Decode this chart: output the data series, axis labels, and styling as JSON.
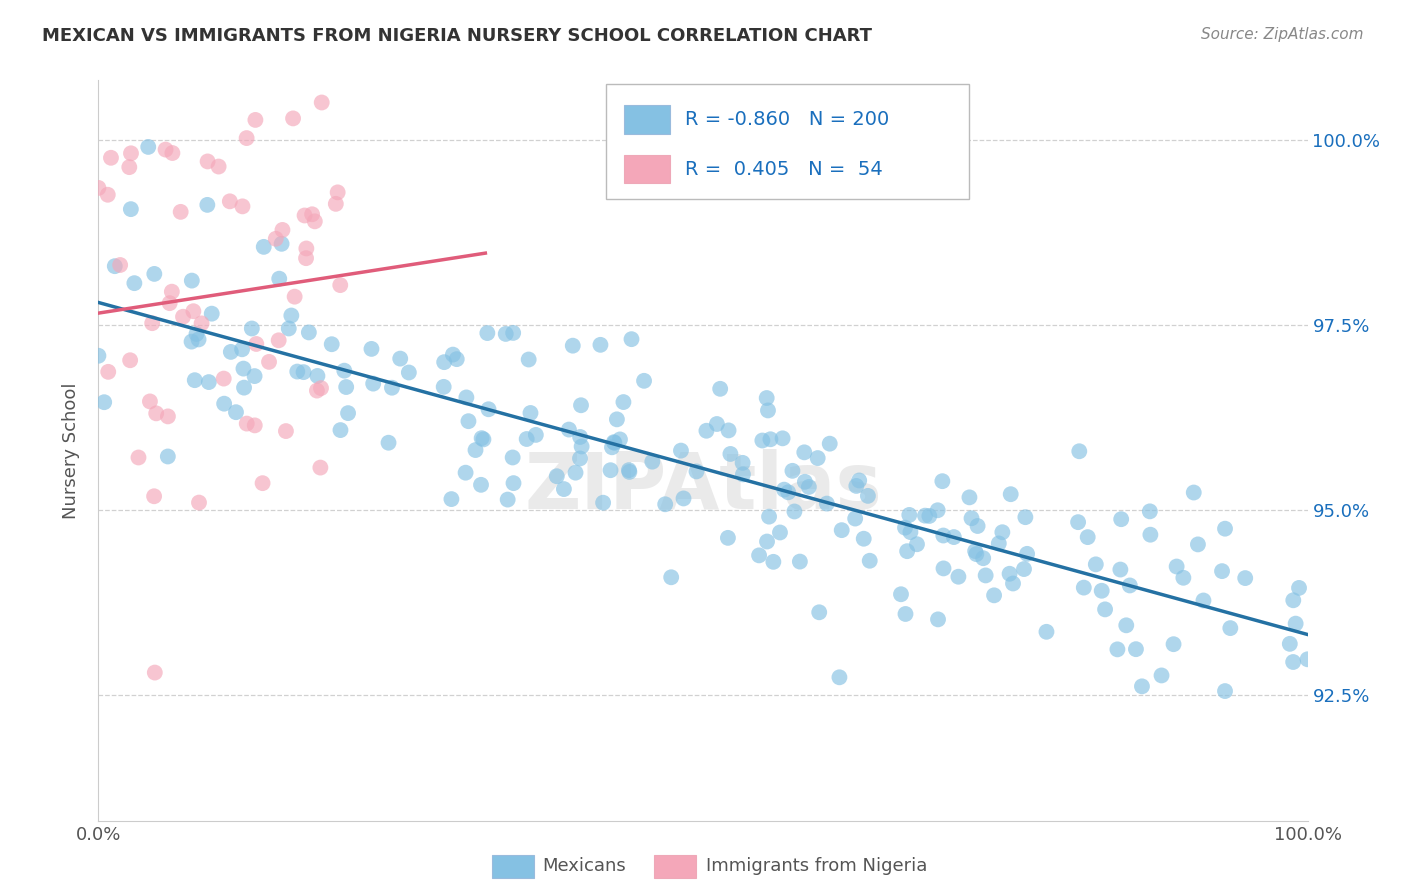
{
  "title": "MEXICAN VS IMMIGRANTS FROM NIGERIA NURSERY SCHOOL CORRELATION CHART",
  "source": "Source: ZipAtlas.com",
  "ylabel": "Nursery School",
  "legend_label1": "Mexicans",
  "legend_label2": "Immigrants from Nigeria",
  "r1": -0.86,
  "n1": 200,
  "r2": 0.405,
  "n2": 54,
  "color_blue": "#85c1e3",
  "color_pink": "#f4a7b9",
  "color_blue_line": "#2471a3",
  "color_pink_line": "#e05c7a",
  "color_blue_text": "#1a6fbd",
  "watermark": "ZIPAtlas",
  "xlim": [
    0.0,
    1.0
  ],
  "ylim": [
    0.908,
    1.008
  ],
  "yticks": [
    0.925,
    0.95,
    0.975,
    1.0
  ],
  "ytick_labels": [
    "92.5%",
    "95.0%",
    "97.5%",
    "100.0%"
  ],
  "background_color": "#ffffff",
  "seed": 123
}
